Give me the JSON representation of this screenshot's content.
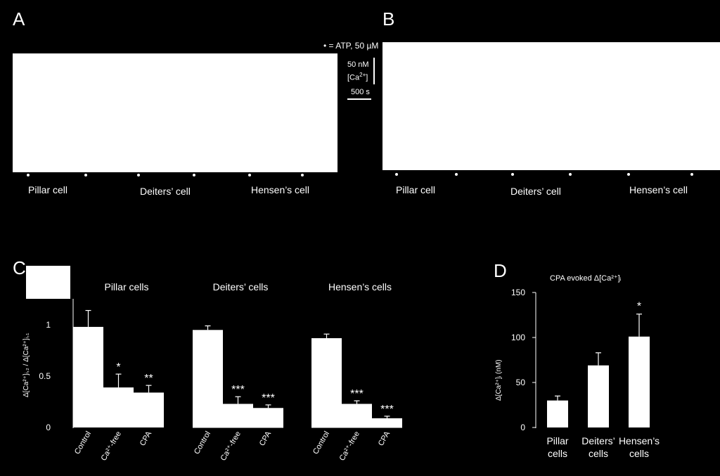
{
  "panel_a": {
    "letter": "A",
    "legend": "• = ATP, 50 µM",
    "scalebar_conc": "50 nM",
    "scalebar_ca_prefix": "[Ca",
    "scalebar_ca_sup": "2+",
    "scalebar_ca_suffix": "]",
    "scalebar_time": "500 s",
    "labels": [
      "Pillar cell",
      "Deiters’ cell",
      "Hensen’s cell"
    ]
  },
  "panel_b": {
    "letter": "B",
    "labels": [
      "Pillar cell",
      "Deiters’ cell",
      "Hensen’s cell"
    ]
  },
  "panel_c": {
    "letter": "C",
    "ylabel": "Δ[Ca²⁺]ᵢ,₂ / Δ[Ca²⁺]ᵢ,₁",
    "yticks": [
      "1",
      "0.5",
      "0"
    ]
  },
  "panel_d": {
    "letter": "D",
    "title": "CPA evoked  Δ[Ca²⁺]ᵢ",
    "ylabel": "Δ[Ca²⁺]ᵢ (nM)",
    "yticks": [
      "150",
      "100",
      "50",
      "0"
    ]
  },
  "chart_data": [
    {
      "type": "bar",
      "title": "Pillar cells",
      "categories": [
        "Control",
        "Ca²⁺-free",
        "CPA"
      ],
      "values": [
        0.98,
        0.39,
        0.34
      ],
      "errors": [
        0.16,
        0.13,
        0.07
      ],
      "significance": [
        "",
        "*",
        "**"
      ],
      "ylim": [
        0,
        1.25
      ]
    },
    {
      "type": "bar",
      "title": "Deiters’ cells",
      "categories": [
        "Control",
        "Ca²⁺-free",
        "CPA"
      ],
      "values": [
        0.95,
        0.23,
        0.19
      ],
      "errors": [
        0.04,
        0.07,
        0.03
      ],
      "significance": [
        "",
        "***",
        "***"
      ],
      "ylim": [
        0,
        1.25
      ]
    },
    {
      "type": "bar",
      "title": "Hensen’s cells",
      "categories": [
        "Control",
        "Ca²⁺-free",
        "CPA"
      ],
      "values": [
        0.87,
        0.23,
        0.09
      ],
      "errors": [
        0.04,
        0.03,
        0.02
      ],
      "significance": [
        "",
        "***",
        "***"
      ],
      "ylim": [
        0,
        1.25
      ]
    },
    {
      "type": "bar",
      "title": "CPA evoked  Δ[Ca²⁺]ᵢ",
      "categories": [
        "Pillar\ncells",
        "Deiters’\ncells",
        "Hensen’s\ncells"
      ],
      "values": [
        30,
        69,
        101
      ],
      "errors": [
        5,
        14,
        25
      ],
      "significance": [
        "",
        "",
        "*"
      ],
      "ylim": [
        0,
        150
      ]
    }
  ]
}
